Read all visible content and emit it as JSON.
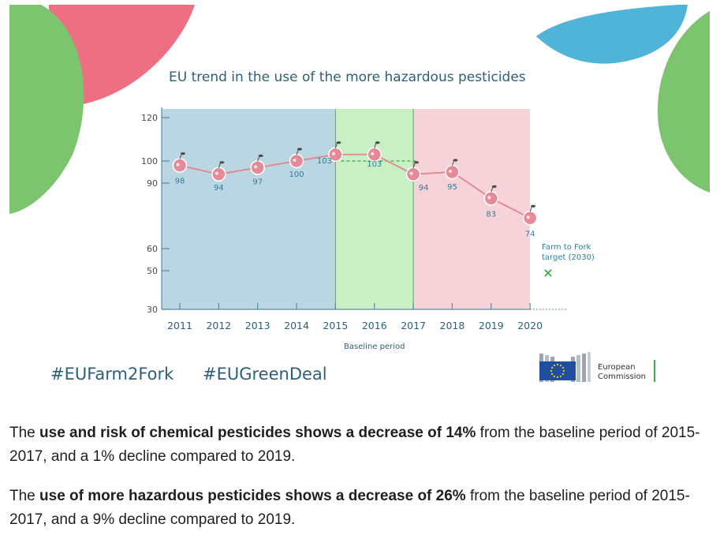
{
  "chart_data": {
    "type": "line",
    "title": "EU trend in the use of the more hazardous pesticides",
    "x": [
      "2011",
      "2012",
      "2013",
      "2014",
      "2015",
      "2016",
      "2017",
      "2018",
      "2019",
      "2020"
    ],
    "series": [
      {
        "values": [
          98,
          94,
          97,
          100,
          103,
          103,
          94,
          95,
          83,
          74
        ]
      }
    ],
    "yticks": [
      "30",
      "50",
      "60",
      "90",
      "100",
      "120"
    ],
    "ylim": [
      30,
      120
    ],
    "periods": [
      {
        "from": "2011",
        "to": "2015",
        "color": "#b9d6e2"
      },
      {
        "from": "2015",
        "to": "2017",
        "color": "#c9efc4",
        "label": "Baseline period"
      },
      {
        "from": "2017",
        "to": "2020",
        "color": "#f6d3d8"
      }
    ],
    "baseline_value": 100,
    "target": {
      "label_line1": "Farm to Fork",
      "label_line2": "target (2030)",
      "marker": "×",
      "value": 50
    },
    "line_color": "#e4838f",
    "axis_color": "#5a8aa3"
  },
  "hashtags": [
    "#EUFarm2Fork",
    "#EUGreenDeal"
  ],
  "logo": {
    "line1": "European",
    "line2": "Commission"
  },
  "paragraphs": [
    {
      "pre": "The ",
      "bold": "use and risk of chemical pesticides shows a decrease of 14%",
      "post": " from the baseline period of 2015-2017, and a 1% decline compared to 2019."
    },
    {
      "pre": "The ",
      "bold": "use of more hazardous pesticides shows a decrease of 26%",
      "post": " from the baseline period of 2015-2017, and a 9% decline compared to 2019."
    }
  ]
}
